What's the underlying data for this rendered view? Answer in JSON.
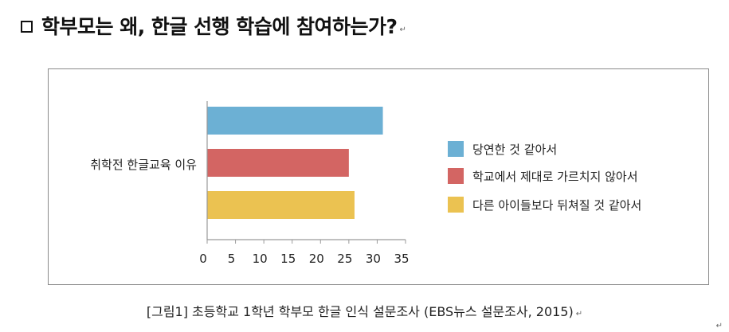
{
  "heading": {
    "text": "학부모는 왜, 한글 선행 학습에 참여하는가?"
  },
  "caption": {
    "text": "[그림1] 초등학교 1학년 학부모 한글 인식 설문조사 (EBS뉴스 설문조사, 2015)"
  },
  "chart_data": {
    "type": "bar",
    "orientation": "horizontal",
    "categories": [
      "취학전 한글교육 이유"
    ],
    "series": [
      {
        "name": "당연한 것 같아서",
        "values": [
          31
        ],
        "color": "#6cb0d4"
      },
      {
        "name": "학교에서 제대로 가르치지 않아서",
        "values": [
          25
        ],
        "color": "#d36563"
      },
      {
        "name": "다른 아이들보다 뒤쳐질 것 같아서",
        "values": [
          26
        ],
        "color": "#ebc251"
      }
    ],
    "xlim": [
      0,
      35
    ],
    "xticks": [
      "0",
      "5",
      "10",
      "15",
      "20",
      "25",
      "30",
      "35"
    ],
    "tick_values": [
      0,
      5,
      10,
      15,
      20,
      25,
      30,
      35
    ],
    "grid": false,
    "legend_position": "right"
  }
}
